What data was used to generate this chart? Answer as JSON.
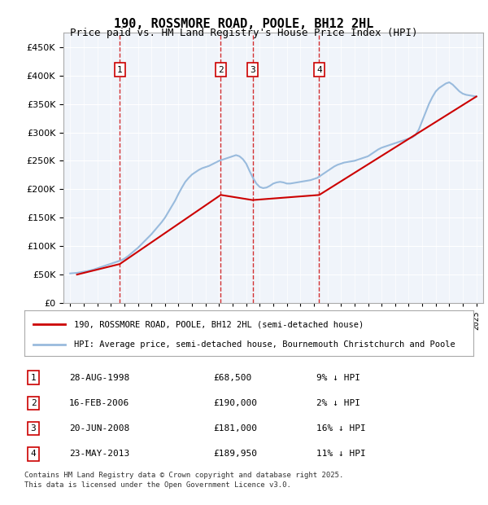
{
  "title": "190, ROSSMORE ROAD, POOLE, BH12 2HL",
  "subtitle": "Price paid vs. HM Land Registry's House Price Index (HPI)",
  "legend_line1": "190, ROSSMORE ROAD, POOLE, BH12 2HL (semi-detached house)",
  "legend_line2": "HPI: Average price, semi-detached house, Bournemouth Christchurch and Poole",
  "footer1": "Contains HM Land Registry data © Crown copyright and database right 2025.",
  "footer2": "This data is licensed under the Open Government Licence v3.0.",
  "transactions": [
    {
      "num": 1,
      "date": "28-AUG-1998",
      "price": 68500,
      "pct": "9%",
      "dir": "↓",
      "year": 1998.66
    },
    {
      "num": 2,
      "date": "16-FEB-2006",
      "price": 190000,
      "pct": "2%",
      "dir": "↓",
      "year": 2006.12
    },
    {
      "num": 3,
      "date": "20-JUN-2008",
      "price": 181000,
      "pct": "16%",
      "dir": "↓",
      "year": 2008.47
    },
    {
      "num": 4,
      "date": "23-MAY-2013",
      "price": 189950,
      "pct": "11%",
      "dir": "↓",
      "year": 2013.39
    }
  ],
  "ylim": [
    0,
    475000
  ],
  "yticks": [
    0,
    50000,
    100000,
    150000,
    200000,
    250000,
    300000,
    350000,
    400000,
    450000
  ],
  "xlim": [
    1994.5,
    2025.5
  ],
  "bg_color": "#e8f0f8",
  "plot_bg": "#f0f4fa",
  "red_line_color": "#cc0000",
  "blue_line_color": "#99bbdd",
  "vline_color": "#cc0000",
  "grid_color": "#ffffff",
  "transaction_box_color": "#cc0000",
  "hpi_series_x": [
    1995,
    1995.25,
    1995.5,
    1995.75,
    1996,
    1996.25,
    1996.5,
    1996.75,
    1997,
    1997.25,
    1997.5,
    1997.75,
    1998,
    1998.25,
    1998.5,
    1998.75,
    1999,
    1999.25,
    1999.5,
    1999.75,
    2000,
    2000.25,
    2000.5,
    2000.75,
    2001,
    2001.25,
    2001.5,
    2001.75,
    2002,
    2002.25,
    2002.5,
    2002.75,
    2003,
    2003.25,
    2003.5,
    2003.75,
    2004,
    2004.25,
    2004.5,
    2004.75,
    2005,
    2005.25,
    2005.5,
    2005.75,
    2006,
    2006.25,
    2006.5,
    2006.75,
    2007,
    2007.25,
    2007.5,
    2007.75,
    2008,
    2008.25,
    2008.5,
    2008.75,
    2009,
    2009.25,
    2009.5,
    2009.75,
    2010,
    2010.25,
    2010.5,
    2010.75,
    2011,
    2011.25,
    2011.5,
    2011.75,
    2012,
    2012.25,
    2012.5,
    2012.75,
    2013,
    2013.25,
    2013.5,
    2013.75,
    2014,
    2014.25,
    2014.5,
    2014.75,
    2015,
    2015.25,
    2015.5,
    2015.75,
    2016,
    2016.25,
    2016.5,
    2016.75,
    2017,
    2017.25,
    2017.5,
    2017.75,
    2018,
    2018.25,
    2018.5,
    2018.75,
    2019,
    2019.25,
    2019.5,
    2019.75,
    2020,
    2020.25,
    2020.5,
    2020.75,
    2021,
    2021.25,
    2021.5,
    2021.75,
    2022,
    2022.25,
    2022.5,
    2022.75,
    2023,
    2023.25,
    2023.5,
    2023.75,
    2024,
    2024.25,
    2024.5,
    2024.75,
    2025
  ],
  "hpi_series_y": [
    52000,
    52500,
    53000,
    54000,
    55000,
    56000,
    57500,
    59000,
    61000,
    63000,
    65000,
    67000,
    69000,
    71000,
    73000,
    75000,
    78000,
    82000,
    87000,
    92000,
    97000,
    103000,
    109000,
    115000,
    121000,
    128000,
    135000,
    142000,
    150000,
    160000,
    170000,
    180000,
    192000,
    203000,
    213000,
    220000,
    226000,
    230000,
    234000,
    237000,
    239000,
    241000,
    244000,
    247000,
    250000,
    252000,
    254000,
    256000,
    258000,
    260000,
    258000,
    253000,
    245000,
    232000,
    220000,
    210000,
    204000,
    202000,
    203000,
    206000,
    210000,
    212000,
    213000,
    212000,
    210000,
    210000,
    211000,
    212000,
    213000,
    214000,
    215000,
    216000,
    218000,
    220000,
    224000,
    228000,
    232000,
    236000,
    240000,
    243000,
    245000,
    247000,
    248000,
    249000,
    250000,
    252000,
    254000,
    256000,
    258000,
    262000,
    266000,
    270000,
    273000,
    275000,
    277000,
    279000,
    281000,
    283000,
    285000,
    287000,
    289000,
    291000,
    295000,
    305000,
    320000,
    335000,
    350000,
    362000,
    372000,
    378000,
    382000,
    386000,
    388000,
    384000,
    378000,
    372000,
    368000,
    366000,
    365000,
    364000,
    363000
  ],
  "property_series_x": [
    1995.5,
    1998.66,
    2006.12,
    2008.47,
    2013.39,
    2025.0
  ],
  "property_series_y": [
    50000,
    68500,
    190000,
    181000,
    189950,
    363000
  ]
}
